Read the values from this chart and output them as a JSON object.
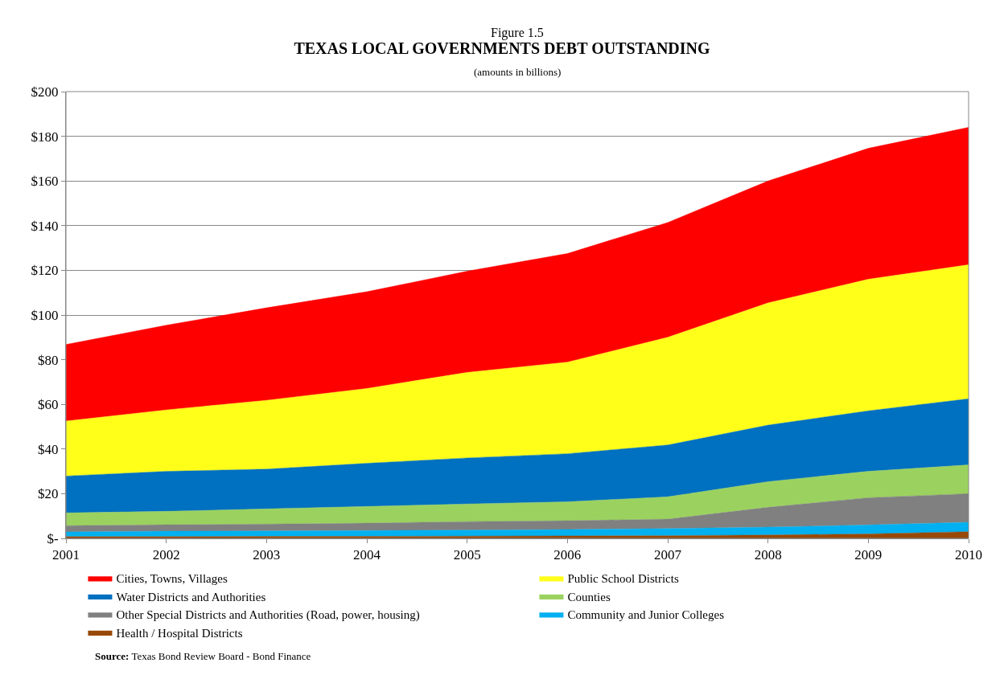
{
  "chart_data": {
    "type": "area",
    "stacked": true,
    "title": "TEXAS LOCAL GOVERNMENTS DEBT OUTSTANDING",
    "subtitle": "(amounts in billions)",
    "annotations": [
      "Figure 1.5",
      "**Source:** Texas Bond Review Board - Bond Finance"
    ],
    "x": [
      2001,
      2002,
      2003,
      2004,
      2005,
      2006,
      2007,
      2008,
      2009,
      2010
    ],
    "xlim": [
      2001,
      2010
    ],
    "xticks": [
      2001,
      2002,
      2003,
      2004,
      2005,
      2006,
      2007,
      2008,
      2009,
      2010
    ],
    "ylim": [
      0,
      200
    ],
    "yticks": [
      {
        "value": 0,
        "label": "$-"
      },
      {
        "value": 20,
        "label": "$20"
      },
      {
        "value": 40,
        "label": "$40"
      },
      {
        "value": 60,
        "label": "$60"
      },
      {
        "value": 80,
        "label": "$80"
      },
      {
        "value": 100,
        "label": "$100"
      },
      {
        "value": 120,
        "label": "$120"
      },
      {
        "value": 140,
        "label": "$140"
      },
      {
        "value": 160,
        "label": "$160"
      },
      {
        "value": 180,
        "label": "$180"
      },
      {
        "value": 200,
        "label": "$200"
      }
    ],
    "grid": "y",
    "legend": "bottom",
    "series": [
      {
        "name": "Health / Hospital Districts",
        "color": "#984807",
        "values": [
          0.8,
          0.8,
          0.9,
          0.9,
          1.0,
          1.1,
          1.2,
          1.5,
          2.0,
          3.0
        ]
      },
      {
        "name": "Community and Junior Colleges",
        "color": "#00b0f0",
        "values": [
          2.1,
          2.4,
          2.4,
          2.6,
          2.7,
          2.9,
          3.2,
          3.5,
          4.0,
          4.2
        ]
      },
      {
        "name": "Other Special Districts and Authorities (Road, power, housing)",
        "color": "#808080",
        "values": [
          2.8,
          2.9,
          3.1,
          3.3,
          3.8,
          3.9,
          4.2,
          8.9,
          12.2,
          12.8
        ]
      },
      {
        "name": "Counties",
        "color": "#9bd25f",
        "values": [
          5.7,
          6.0,
          6.8,
          7.5,
          7.9,
          8.5,
          10.0,
          11.5,
          11.8,
          12.9
        ]
      },
      {
        "name": "Water Districts and Authorities",
        "color": "#0070c0",
        "values": [
          16.5,
          17.9,
          17.8,
          19.3,
          20.6,
          21.5,
          23.2,
          25.3,
          27.1,
          29.6
        ]
      },
      {
        "name": "Public School Districts",
        "color": "#ffff1a",
        "values": [
          24.6,
          27.5,
          30.8,
          33.5,
          38.3,
          41.0,
          48.2,
          54.7,
          58.9,
          60.0
        ]
      },
      {
        "name": "Cities, Towns, Villages",
        "color": "#ff0000",
        "values": [
          34.3,
          37.9,
          41.4,
          43.3,
          45.3,
          48.6,
          51.4,
          54.6,
          58.6,
          61.5
        ]
      }
    ]
  }
}
